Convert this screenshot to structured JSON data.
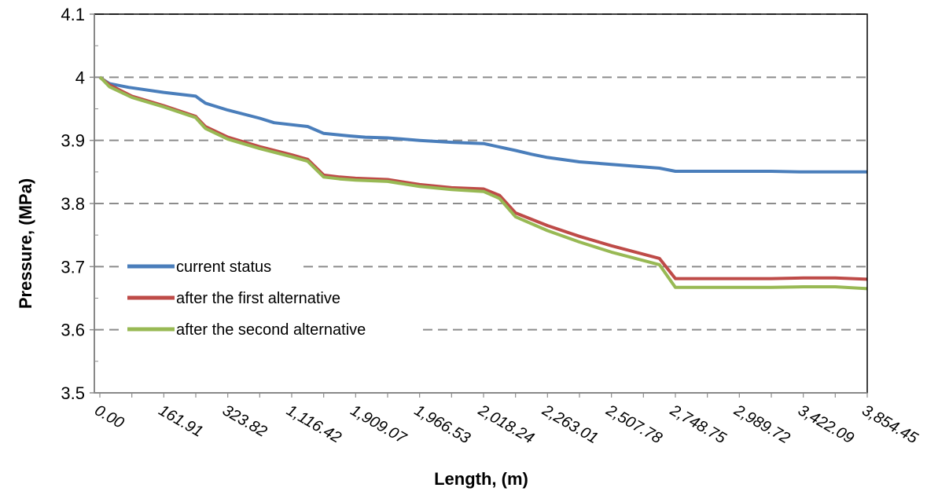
{
  "chart_data": {
    "type": "line",
    "xlabel": "Length,  (m)",
    "ylabel": "Pressure,  (MPa)",
    "ylim": [
      3.5,
      4.1
    ],
    "y_ticks": [
      "3.5",
      "3.6",
      "3.7",
      "3.8",
      "3.9",
      "4",
      "4.1"
    ],
    "y_tick_values": [
      3.5,
      3.6,
      3.7,
      3.8,
      3.9,
      4.0,
      4.1
    ],
    "x_tick_labels": [
      "0.00",
      "161.91",
      "323.82",
      "1,116.42",
      "1,909.07",
      "1,966.53",
      "2,018.24",
      "2,263.01",
      "2,507.78",
      "2,748.75",
      "2,989.72",
      "3,422.09",
      "3,854.45"
    ],
    "grid": "horizontal dashed",
    "legend_position": "left-center",
    "series": [
      {
        "name": "current status",
        "color": "#4a7ebb",
        "x": [
          0,
          0.05,
          0.3,
          0.9,
          2.0,
          3.0,
          3.05,
          3.3,
          4.0,
          5.0,
          5.45,
          6.5,
          7.0,
          7.8,
          8.3,
          9.0,
          10.0,
          11.0,
          12.0,
          13.0,
          13.5,
          14.0,
          15.0,
          16.0,
          17.5,
          18.0,
          19.0,
          20.0,
          21.0,
          22.0,
          23.0,
          24.0
        ],
        "y": [
          4.0,
          3.998,
          3.99,
          3.984,
          3.976,
          3.97,
          3.968,
          3.959,
          3.948,
          3.935,
          3.928,
          3.922,
          3.911,
          3.907,
          3.905,
          3.904,
          3.9,
          3.897,
          3.895,
          3.884,
          3.878,
          3.873,
          3.866,
          3.862,
          3.856,
          3.851,
          3.851,
          3.851,
          3.851,
          3.85,
          3.85,
          3.85
        ]
      },
      {
        "name": "after the first alternative",
        "color": "#be4b48",
        "x": [
          0,
          0.05,
          0.3,
          1.0,
          2.0,
          3.0,
          3.05,
          3.3,
          4.0,
          5.0,
          6.0,
          6.5,
          7.0,
          7.5,
          8.0,
          9.0,
          10.0,
          11.0,
          12.0,
          12.5,
          13.0,
          14.0,
          15.0,
          16.0,
          17.5,
          18.0,
          19.0,
          20.0,
          21.0,
          22.0,
          23.0,
          24.0
        ],
        "y": [
          4.0,
          3.998,
          3.988,
          3.97,
          3.955,
          3.938,
          3.935,
          3.922,
          3.905,
          3.89,
          3.877,
          3.87,
          3.845,
          3.842,
          3.84,
          3.838,
          3.83,
          3.825,
          3.823,
          3.813,
          3.785,
          3.765,
          3.748,
          3.733,
          3.713,
          3.681,
          3.681,
          3.681,
          3.681,
          3.682,
          3.682,
          3.68
        ]
      },
      {
        "name": "after the second alternative",
        "color": "#98b954",
        "x": [
          0,
          0.05,
          0.3,
          1.0,
          2.0,
          3.0,
          3.05,
          3.3,
          4.0,
          5.0,
          6.0,
          6.5,
          7.0,
          7.5,
          8.0,
          9.0,
          10.0,
          11.0,
          12.0,
          12.5,
          13.0,
          14.0,
          15.0,
          16.0,
          17.5,
          18.0,
          19.0,
          20.0,
          21.0,
          22.0,
          23.0,
          24.0
        ],
        "y": [
          4.0,
          3.998,
          3.985,
          3.968,
          3.953,
          3.936,
          3.933,
          3.919,
          3.902,
          3.887,
          3.874,
          3.867,
          3.842,
          3.839,
          3.837,
          3.835,
          3.827,
          3.822,
          3.819,
          3.808,
          3.779,
          3.757,
          3.739,
          3.723,
          3.703,
          3.667,
          3.667,
          3.667,
          3.667,
          3.668,
          3.668,
          3.665
        ]
      }
    ]
  }
}
